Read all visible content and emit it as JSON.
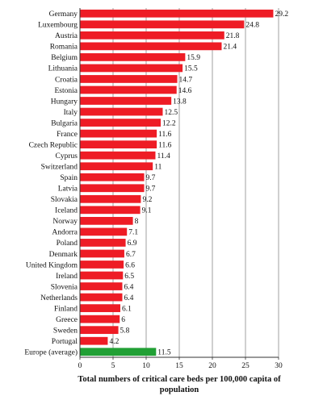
{
  "chart_data": {
    "type": "bar",
    "orientation": "horizontal",
    "categories": [
      "Germany",
      "Luxembourg",
      "Austria",
      "Romania",
      "Belgium",
      "Lithuania",
      "Croatia",
      "Estonia",
      "Hungary",
      "Italy",
      "Bulgaria",
      "France",
      "Czech Republic",
      "Cyprus",
      "Switzerland",
      "Spain",
      "Latvia",
      "Slovakia",
      "Iceland",
      "Norway",
      "Andorra",
      "Poland",
      "Denmark",
      "United Kingdom",
      "Ireland",
      "Slovenia",
      "Netherlands",
      "Finland",
      "Greece",
      "Sweden",
      "Portugal",
      "Europe (average)"
    ],
    "values": [
      29.2,
      24.8,
      21.8,
      21.4,
      15.9,
      15.5,
      14.7,
      14.6,
      13.8,
      12.5,
      12.2,
      11.6,
      11.6,
      11.4,
      11,
      9.7,
      9.7,
      9.2,
      9.1,
      8,
      7.1,
      6.9,
      6.7,
      6.6,
      6.5,
      6.4,
      6.4,
      6.1,
      6,
      5.8,
      4.2,
      11.5
    ],
    "value_labels": [
      "29.2",
      "24.8",
      "21.8",
      "21.4",
      "15.9",
      "15.5",
      "14.7",
      "14.6",
      "13.8",
      "12.5",
      "12.2",
      "11.6",
      "11.6",
      "11.4",
      "11",
      "9.7",
      "9.7",
      "9.2",
      "9.1",
      "8",
      "7.1",
      "6.9",
      "6.7",
      "6.6",
      "6.5",
      "6.4",
      "6.4",
      "6.1",
      "6",
      "5.8",
      "4.2",
      "11.5"
    ],
    "highlight_category": "Europe (average)",
    "colors": {
      "bar": "#ee1c25",
      "highlight_bar": "#21a035",
      "gridline": "#888888",
      "axis": "#333333"
    },
    "xlim": [
      0,
      30
    ],
    "xticks": [
      0,
      5,
      10,
      15,
      20,
      25,
      30
    ],
    "xtick_labels": [
      "0",
      "5",
      "10",
      "15",
      "20",
      "25",
      "30"
    ],
    "xlabel_line1": "Total numbers of critical care beds per 100,000 capita of",
    "xlabel_line2": "population",
    "grid": "vertical"
  }
}
